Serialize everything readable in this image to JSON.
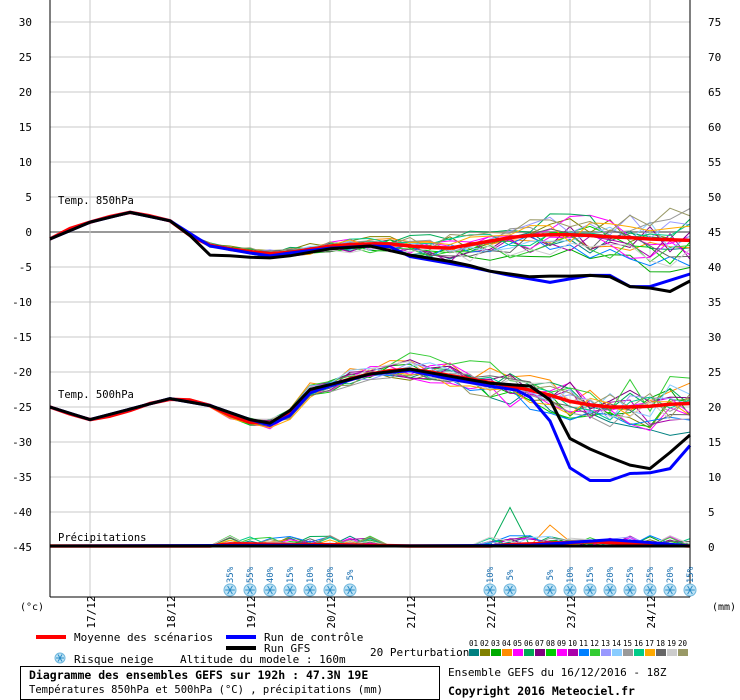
{
  "chart_data": {
    "type": "line",
    "left_axis": {
      "unit": "(°c)",
      "ticks": [
        30,
        25,
        20,
        15,
        10,
        5,
        0,
        -5,
        -10,
        -15,
        -20,
        -25,
        -30,
        -35,
        -40,
        -45
      ]
    },
    "right_axis": {
      "unit": "(mm)",
      "ticks": [
        75,
        70,
        65,
        60,
        55,
        50,
        45,
        40,
        35,
        30,
        25,
        20,
        15,
        10,
        5,
        0
      ]
    },
    "x_ticks": [
      "17/12",
      "18/12",
      "19/12",
      "20/12",
      "21/12",
      "22/12",
      "23/12",
      "24/12"
    ],
    "x_hours": [
      12,
      36,
      60,
      84,
      108,
      132,
      156,
      180
    ],
    "x_range_hours": [
      0,
      192
    ],
    "panel_labels": {
      "t850": "Temp. 850hPa",
      "t500": "Temp. 500hPa",
      "precip": "Précipitations"
    },
    "series": [
      {
        "name": "Moyenne des scénarios",
        "color": "#ff0000",
        "t850": [
          [
            0,
            -1
          ],
          [
            6,
            0.5
          ],
          [
            12,
            1.4
          ],
          [
            18,
            2.2
          ],
          [
            24,
            2.8
          ],
          [
            30,
            2.3
          ],
          [
            36,
            1.6
          ],
          [
            42,
            -0.5
          ],
          [
            48,
            -1.9
          ],
          [
            54,
            -2.4
          ],
          [
            60,
            -2.8
          ],
          [
            66,
            -3.1
          ],
          [
            72,
            -2.9
          ],
          [
            78,
            -2.5
          ],
          [
            84,
            -2.0
          ],
          [
            90,
            -1.8
          ],
          [
            96,
            -1.7
          ],
          [
            102,
            -1.7
          ],
          [
            108,
            -2.0
          ],
          [
            114,
            -2.2
          ],
          [
            120,
            -2.3
          ],
          [
            126,
            -1.8
          ],
          [
            132,
            -1.3
          ],
          [
            138,
            -0.8
          ],
          [
            144,
            -0.5
          ],
          [
            150,
            -0.4
          ],
          [
            156,
            -0.4
          ],
          [
            162,
            -0.5
          ],
          [
            168,
            -0.7
          ],
          [
            174,
            -0.8
          ],
          [
            180,
            -1.0
          ],
          [
            186,
            -1.1
          ],
          [
            192,
            -1.2
          ]
        ],
        "t500": [
          [
            0,
            -25
          ],
          [
            6,
            -26
          ],
          [
            12,
            -26.8
          ],
          [
            18,
            -26.3
          ],
          [
            24,
            -25.5
          ],
          [
            30,
            -24.5
          ],
          [
            36,
            -23.9
          ],
          [
            42,
            -24.0
          ],
          [
            48,
            -24.8
          ],
          [
            54,
            -26.2
          ],
          [
            60,
            -27.2
          ],
          [
            66,
            -27.3
          ],
          [
            72,
            -26
          ],
          [
            78,
            -22.8
          ],
          [
            84,
            -21.9
          ],
          [
            90,
            -21.0
          ],
          [
            96,
            -20.3
          ],
          [
            102,
            -19.8
          ],
          [
            108,
            -19.6
          ],
          [
            114,
            -20.0
          ],
          [
            120,
            -20.5
          ],
          [
            126,
            -21.0
          ],
          [
            132,
            -21.5
          ],
          [
            138,
            -22.0
          ],
          [
            144,
            -22.6
          ],
          [
            150,
            -23.3
          ],
          [
            156,
            -24.2
          ],
          [
            162,
            -24.7
          ],
          [
            168,
            -25.0
          ],
          [
            174,
            -25.0
          ],
          [
            180,
            -24.9
          ],
          [
            186,
            -24.6
          ],
          [
            192,
            -24.5
          ]
        ],
        "precip": [
          [
            0,
            0
          ],
          [
            48,
            0
          ],
          [
            54,
            0.3
          ],
          [
            60,
            0.3
          ],
          [
            72,
            0.2
          ],
          [
            84,
            0.2
          ],
          [
            96,
            0.1
          ],
          [
            108,
            0
          ],
          [
            120,
            0
          ],
          [
            132,
            0
          ],
          [
            138,
            0.2
          ],
          [
            144,
            0.3
          ],
          [
            150,
            0.4
          ],
          [
            156,
            0.5
          ],
          [
            162,
            0.6
          ],
          [
            168,
            0.5
          ],
          [
            174,
            0.4
          ],
          [
            180,
            0.3
          ],
          [
            186,
            0.1
          ],
          [
            192,
            0
          ]
        ]
      },
      {
        "name": "Run de contrôle",
        "color": "#0000ff",
        "t850": [
          [
            0,
            -1
          ],
          [
            12,
            1.4
          ],
          [
            24,
            2.8
          ],
          [
            36,
            1.6
          ],
          [
            48,
            -2.0
          ],
          [
            60,
            -3.0
          ],
          [
            66,
            -3.4
          ],
          [
            72,
            -3.0
          ],
          [
            84,
            -2.3
          ],
          [
            96,
            -2.0
          ],
          [
            102,
            -2.1
          ],
          [
            108,
            -3.5
          ],
          [
            114,
            -4.0
          ],
          [
            120,
            -4.5
          ],
          [
            126,
            -5.0
          ],
          [
            132,
            -5.6
          ],
          [
            138,
            -6.2
          ],
          [
            144,
            -6.7
          ],
          [
            150,
            -7.2
          ],
          [
            156,
            -6.7
          ],
          [
            162,
            -6.2
          ],
          [
            168,
            -6.2
          ],
          [
            174,
            -7.8
          ],
          [
            180,
            -7.8
          ],
          [
            186,
            -6.9
          ],
          [
            192,
            -6.0
          ]
        ],
        "t500": [
          [
            0,
            -25
          ],
          [
            12,
            -26.8
          ],
          [
            24,
            -25.3
          ],
          [
            36,
            -23.8
          ],
          [
            48,
            -24.8
          ],
          [
            60,
            -26.8
          ],
          [
            66,
            -27.6
          ],
          [
            72,
            -26.2
          ],
          [
            78,
            -23.0
          ],
          [
            84,
            -22.0
          ],
          [
            96,
            -20.3
          ],
          [
            108,
            -19.8
          ],
          [
            120,
            -21.0
          ],
          [
            132,
            -22.0
          ],
          [
            140,
            -22.6
          ],
          [
            144,
            -23.6
          ],
          [
            150,
            -27
          ],
          [
            156,
            -33.7
          ],
          [
            162,
            -35.5
          ],
          [
            168,
            -35.5
          ],
          [
            174,
            -34.5
          ],
          [
            180,
            -34.4
          ],
          [
            186,
            -33.8
          ],
          [
            192,
            -30.5
          ]
        ],
        "precip": [
          [
            0,
            0
          ],
          [
            72,
            0.1
          ],
          [
            96,
            0
          ],
          [
            144,
            0.1
          ],
          [
            168,
            0.9
          ],
          [
            180,
            0.5
          ],
          [
            192,
            0
          ]
        ]
      },
      {
        "name": "Run GFS",
        "color": "#000000",
        "t850": [
          [
            0,
            -1
          ],
          [
            12,
            1.4
          ],
          [
            24,
            2.8
          ],
          [
            36,
            1.6
          ],
          [
            42,
            -0.5
          ],
          [
            48,
            -3.3
          ],
          [
            54,
            -3.4
          ],
          [
            60,
            -3.6
          ],
          [
            66,
            -3.7
          ],
          [
            72,
            -3.4
          ],
          [
            84,
            -2.4
          ],
          [
            96,
            -2.0
          ],
          [
            108,
            -3.3
          ],
          [
            120,
            -4.2
          ],
          [
            126,
            -4.8
          ],
          [
            132,
            -5.6
          ],
          [
            138,
            -6.0
          ],
          [
            144,
            -6.4
          ],
          [
            150,
            -6.3
          ],
          [
            156,
            -6.3
          ],
          [
            162,
            -6.2
          ],
          [
            168,
            -6.4
          ],
          [
            174,
            -7.8
          ],
          [
            180,
            -8.0
          ],
          [
            186,
            -8.5
          ],
          [
            192,
            -7.0
          ]
        ],
        "t500": [
          [
            0,
            -25
          ],
          [
            12,
            -26.8
          ],
          [
            24,
            -25.3
          ],
          [
            36,
            -23.8
          ],
          [
            48,
            -24.8
          ],
          [
            60,
            -26.8
          ],
          [
            66,
            -27.3
          ],
          [
            72,
            -25.5
          ],
          [
            78,
            -22.5
          ],
          [
            84,
            -21.8
          ],
          [
            96,
            -20.3
          ],
          [
            108,
            -19.6
          ],
          [
            120,
            -20.6
          ],
          [
            132,
            -21.6
          ],
          [
            144,
            -22.0
          ],
          [
            150,
            -24
          ],
          [
            156,
            -29.5
          ],
          [
            162,
            -31
          ],
          [
            168,
            -32.2
          ],
          [
            174,
            -33.3
          ],
          [
            180,
            -33.8
          ],
          [
            186,
            -31.5
          ],
          [
            192,
            -29
          ]
        ],
        "precip": [
          [
            0,
            0
          ],
          [
            192,
            0
          ]
        ]
      }
    ],
    "perturbations": {
      "count_label": "20 Perturbations",
      "ids": [
        "01",
        "02",
        "03",
        "04",
        "05",
        "06",
        "07",
        "08",
        "09",
        "10",
        "11",
        "12",
        "13",
        "14",
        "15",
        "16",
        "17",
        "18",
        "19",
        "20"
      ],
      "colors": [
        "#008080",
        "#808000",
        "#00aa00",
        "#ff8c00",
        "#ff00ff",
        "#00aa55",
        "#800080",
        "#00cc00",
        "#ff00ff",
        "#aa00aa",
        "#0080ff",
        "#33cc33",
        "#9999ff",
        "#88ccff",
        "#999999",
        "#00cc88",
        "#ffaa00",
        "#666666",
        "#cccccc",
        "#999966"
      ]
    },
    "snow_risk": [
      {
        "hour": 60,
        "pct": "35%"
      },
      {
        "hour": 66,
        "pct": "55%"
      },
      {
        "hour": 72,
        "pct": "40%"
      },
      {
        "hour": 78,
        "pct": "15%"
      },
      {
        "hour": 84,
        "pct": "10%"
      },
      {
        "hour": 90,
        "pct": "20%"
      },
      {
        "hour": 96,
        "pct": "5%"
      },
      {
        "hour": 138,
        "pct": "10%"
      },
      {
        "hour": 144,
        "pct": "5%"
      },
      {
        "hour": 156,
        "pct": "5%"
      },
      {
        "hour": 162,
        "pct": "10%"
      },
      {
        "hour": 168,
        "pct": "15%"
      },
      {
        "hour": 174,
        "pct": "20%"
      },
      {
        "hour": 180,
        "pct": "25%"
      },
      {
        "hour": 186,
        "pct": "25%"
      },
      {
        "hour": 192,
        "pct": "20%"
      },
      {
        "hour": 198,
        "pct": "15%"
      }
    ]
  },
  "legend": {
    "mean": "Moyenne des scénarios",
    "control": "Run de contrôle",
    "gfs": "Run GFS",
    "snow": "Risque neige",
    "altitude": "Altitude du modele : 160m",
    "perturbations": "20 Perturbations"
  },
  "footer": {
    "title": "Diagramme des ensembles GEFS sur 192h : 47.3N 19E",
    "subtitle": "Températures 850hPa et 500hPa (°C) , précipitations (mm)",
    "run": "Ensemble GEFS du 16/12/2016 - 18Z",
    "copyright": "Copyright 2016 Meteociel.fr"
  }
}
